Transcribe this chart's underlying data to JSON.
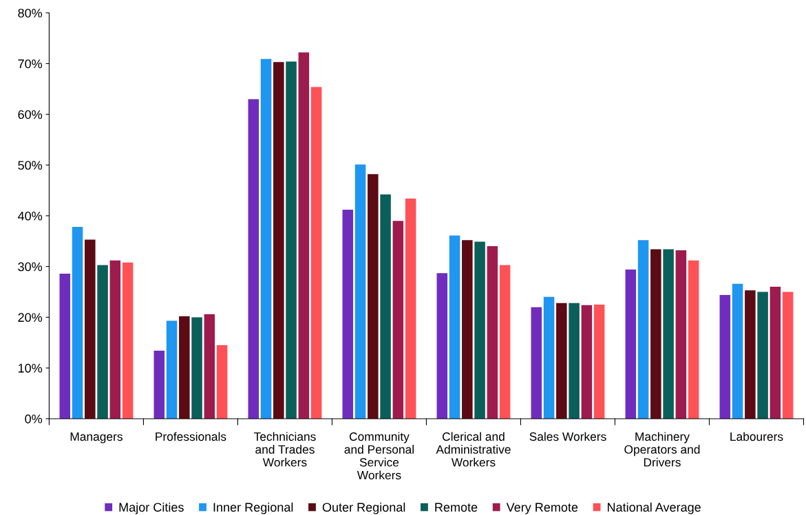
{
  "chart_data": {
    "type": "bar",
    "categories": [
      "Managers",
      "Professionals",
      "Technicians\nand Trades\nWorkers",
      "Community\nand Personal\nService\nWorkers",
      "Clerical and\nAdministrative\nWorkers",
      "Sales Workers",
      "Machinery\nOperators and\nDrivers",
      "Labourers"
    ],
    "series": [
      {
        "name": "Major Cities",
        "color": "#6f2dbd",
        "values": [
          28.6,
          13.4,
          63.0,
          41.2,
          28.7,
          22.0,
          29.4,
          24.4
        ]
      },
      {
        "name": "Inner Regional",
        "color": "#1f96f0",
        "values": [
          37.8,
          19.3,
          70.9,
          50.1,
          36.1,
          24.0,
          35.2,
          26.6
        ]
      },
      {
        "name": "Outer Regional",
        "color": "#5c0a14",
        "values": [
          35.3,
          20.2,
          70.3,
          48.2,
          35.2,
          22.8,
          33.4,
          25.3
        ]
      },
      {
        "name": "Remote",
        "color": "#0b5f5a",
        "values": [
          30.3,
          20.0,
          70.4,
          44.2,
          34.9,
          22.8,
          33.4,
          25.0
        ]
      },
      {
        "name": "Very Remote",
        "color": "#9e1b4e",
        "values": [
          31.2,
          20.6,
          72.2,
          39.0,
          34.0,
          22.4,
          33.2,
          26.0
        ]
      },
      {
        "name": "National Average",
        "color": "#ff5257",
        "values": [
          30.8,
          14.5,
          65.4,
          43.4,
          30.3,
          22.5,
          31.2,
          25.0
        ]
      }
    ],
    "ylim": [
      0,
      80
    ],
    "yticks": [
      {
        "value": 0,
        "label": "0%"
      },
      {
        "value": 10,
        "label": "10%"
      },
      {
        "value": 20,
        "label": "20%"
      },
      {
        "value": 30,
        "label": "30%"
      },
      {
        "value": 40,
        "label": "40%"
      },
      {
        "value": 50,
        "label": "50%"
      },
      {
        "value": 60,
        "label": "60%"
      },
      {
        "value": 70,
        "label": "70%"
      },
      {
        "value": 80,
        "label": "80%"
      }
    ],
    "grid": false,
    "legend": "bottom"
  }
}
